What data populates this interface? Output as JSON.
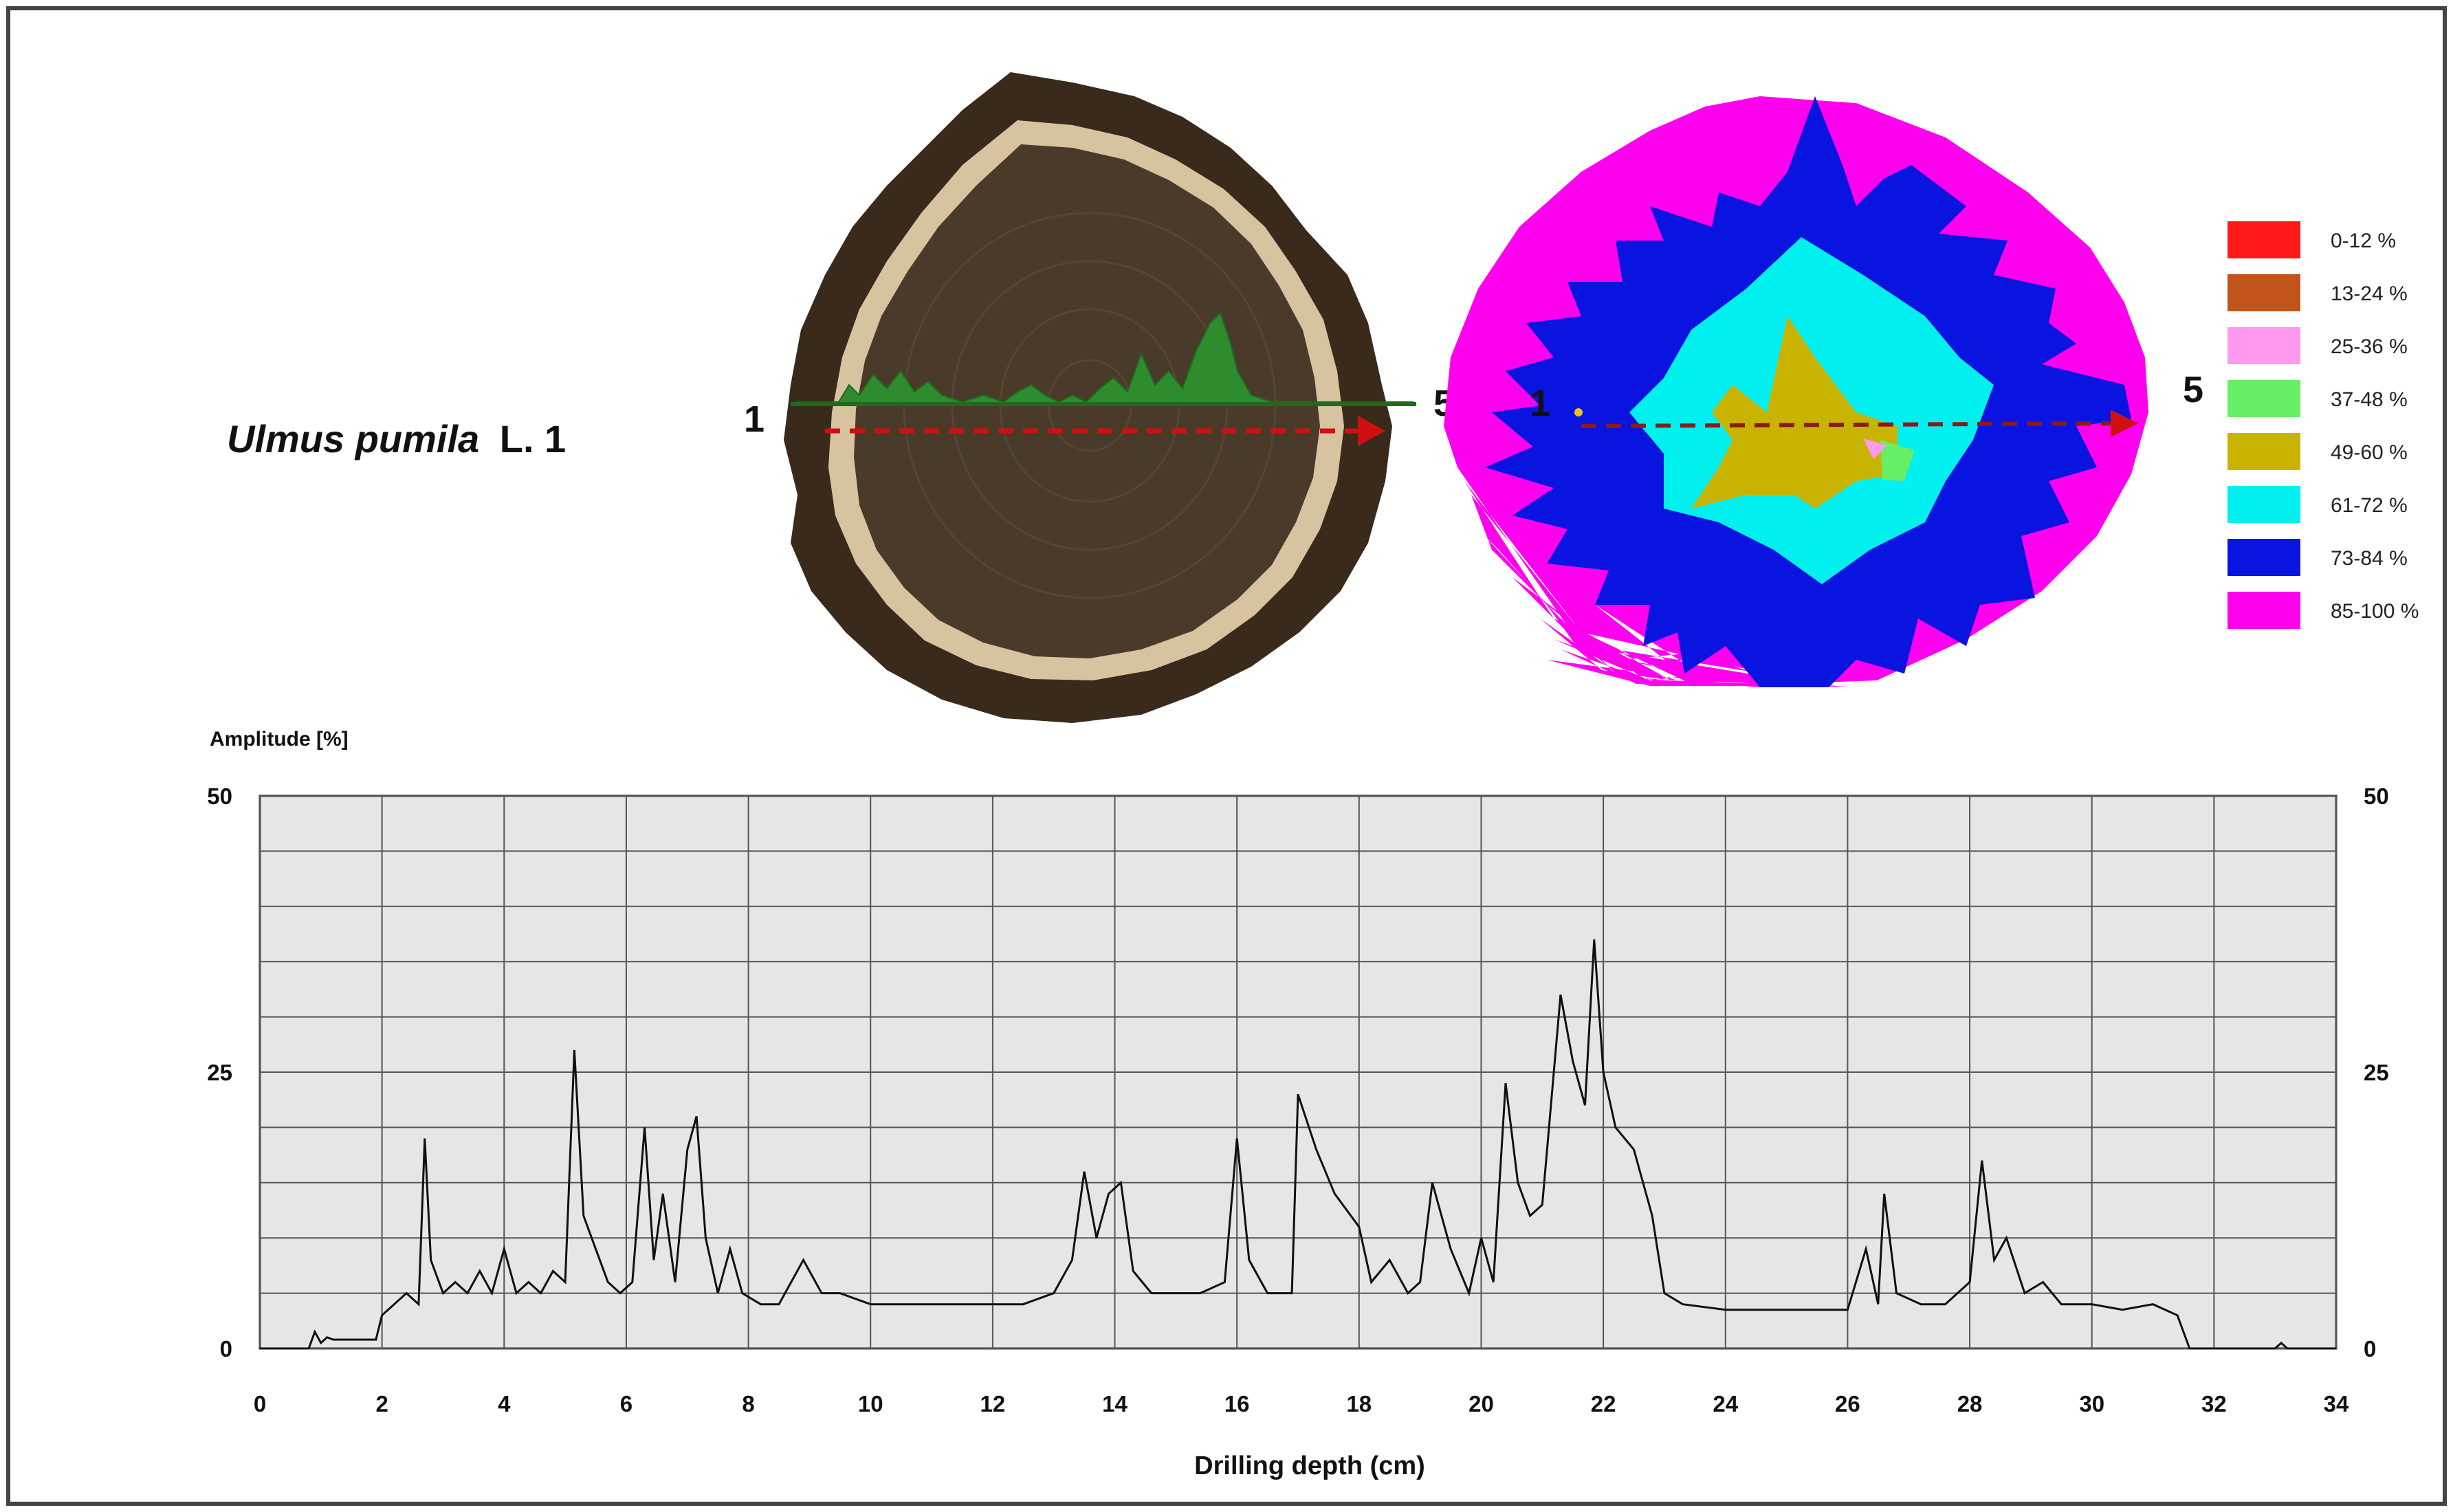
{
  "specimen": {
    "genus_species": "Ulmus pumila",
    "suffix": "L. 1"
  },
  "direction": {
    "start": "1",
    "end": "5"
  },
  "colors": {
    "wood_dark": "#4a3a2a",
    "sapwood": "#d8c3a0",
    "bark": "#3a2a1c",
    "resistance_trace": "#2e8b2e",
    "arrow": "#d01010",
    "arrow_tomogram": "#8b1a1a"
  },
  "legend": [
    {
      "label": "0-12 %",
      "color": "#ff1a1a"
    },
    {
      "label": "13-24 %",
      "color": "#c0541a"
    },
    {
      "label": "25-36 %",
      "color": "#ff99ee"
    },
    {
      "label": "37-48 %",
      "color": "#66ee66"
    },
    {
      "label": "49-60 %",
      "color": "#c8b400"
    },
    {
      "label": "61-72 %",
      "color": "#00f0f0"
    },
    {
      "label": "73-84 %",
      "color": "#0a14e0"
    },
    {
      "label": "85-100 %",
      "color": "#ff00ee"
    }
  ],
  "chart_data": {
    "type": "line",
    "title": "",
    "xlabel": "Drilling depth (cm)",
    "ylabel": "Amplitude [%]",
    "xlim": [
      0,
      34
    ],
    "ylim": [
      0,
      50
    ],
    "x_ticks": [
      0,
      2,
      4,
      6,
      8,
      10,
      12,
      14,
      16,
      18,
      20,
      22,
      24,
      26,
      28,
      30,
      32,
      34
    ],
    "y_ticks": [
      0,
      25,
      50
    ],
    "y_ticks_right": [
      0,
      25,
      50
    ],
    "grid": true,
    "series": [
      {
        "values": [
          [
            0,
            0
          ],
          [
            0.8,
            0
          ],
          [
            0.9,
            1.5
          ],
          [
            1.0,
            0.5
          ],
          [
            1.1,
            1
          ],
          [
            1.2,
            0.8
          ],
          [
            1.9,
            0.8
          ],
          [
            2.0,
            3
          ],
          [
            2.2,
            4
          ],
          [
            2.4,
            5
          ],
          [
            2.6,
            4
          ],
          [
            2.7,
            19
          ],
          [
            2.8,
            8
          ],
          [
            3.0,
            5
          ],
          [
            3.2,
            6
          ],
          [
            3.4,
            5
          ],
          [
            3.6,
            7
          ],
          [
            3.8,
            5
          ],
          [
            4.0,
            9
          ],
          [
            4.2,
            5
          ],
          [
            4.4,
            6
          ],
          [
            4.6,
            5
          ],
          [
            4.8,
            7
          ],
          [
            5.0,
            6
          ],
          [
            5.15,
            27
          ],
          [
            5.3,
            12
          ],
          [
            5.5,
            9
          ],
          [
            5.7,
            6
          ],
          [
            5.9,
            5
          ],
          [
            6.1,
            6
          ],
          [
            6.3,
            20
          ],
          [
            6.45,
            8
          ],
          [
            6.6,
            14
          ],
          [
            6.8,
            6
          ],
          [
            7.0,
            18
          ],
          [
            7.15,
            21
          ],
          [
            7.3,
            10
          ],
          [
            7.5,
            5
          ],
          [
            7.7,
            9
          ],
          [
            7.9,
            5
          ],
          [
            8.2,
            4
          ],
          [
            8.5,
            4
          ],
          [
            8.9,
            8
          ],
          [
            9.2,
            5
          ],
          [
            9.5,
            5
          ],
          [
            10,
            4
          ],
          [
            11,
            4
          ],
          [
            12,
            4
          ],
          [
            12.5,
            4
          ],
          [
            13,
            5
          ],
          [
            13.3,
            8
          ],
          [
            13.5,
            16
          ],
          [
            13.7,
            10
          ],
          [
            13.9,
            14
          ],
          [
            14.1,
            15
          ],
          [
            14.3,
            7
          ],
          [
            14.6,
            5
          ],
          [
            15,
            5
          ],
          [
            15.4,
            5
          ],
          [
            15.8,
            6
          ],
          [
            16.0,
            19
          ],
          [
            16.2,
            8
          ],
          [
            16.5,
            5
          ],
          [
            16.9,
            5
          ],
          [
            17.0,
            23
          ],
          [
            17.3,
            18
          ],
          [
            17.6,
            14
          ],
          [
            18.0,
            11
          ],
          [
            18.2,
            6
          ],
          [
            18.5,
            8
          ],
          [
            18.8,
            5
          ],
          [
            19.0,
            6
          ],
          [
            19.2,
            15
          ],
          [
            19.5,
            9
          ],
          [
            19.8,
            5
          ],
          [
            20.0,
            10
          ],
          [
            20.2,
            6
          ],
          [
            20.4,
            24
          ],
          [
            20.6,
            15
          ],
          [
            20.8,
            12
          ],
          [
            21.0,
            13
          ],
          [
            21.3,
            32
          ],
          [
            21.5,
            26
          ],
          [
            21.7,
            22
          ],
          [
            21.85,
            37
          ],
          [
            22.0,
            25
          ],
          [
            22.2,
            20
          ],
          [
            22.5,
            18
          ],
          [
            22.8,
            12
          ],
          [
            23.0,
            5
          ],
          [
            23.3,
            4
          ],
          [
            24,
            3.5
          ],
          [
            25,
            3.5
          ],
          [
            26,
            3.5
          ],
          [
            26.3,
            9
          ],
          [
            26.5,
            4
          ],
          [
            26.6,
            14
          ],
          [
            26.8,
            5
          ],
          [
            27.2,
            4
          ],
          [
            27.6,
            4
          ],
          [
            28.0,
            6
          ],
          [
            28.2,
            17
          ],
          [
            28.4,
            8
          ],
          [
            28.6,
            10
          ],
          [
            28.9,
            5
          ],
          [
            29.2,
            6
          ],
          [
            29.5,
            4
          ],
          [
            30.0,
            4
          ],
          [
            30.5,
            3.5
          ],
          [
            31.0,
            4
          ],
          [
            31.4,
            3
          ],
          [
            31.6,
            0
          ],
          [
            32,
            0
          ],
          [
            33.0,
            0
          ],
          [
            33.1,
            0.5
          ],
          [
            33.2,
            0
          ],
          [
            34,
            0
          ]
        ]
      }
    ]
  }
}
